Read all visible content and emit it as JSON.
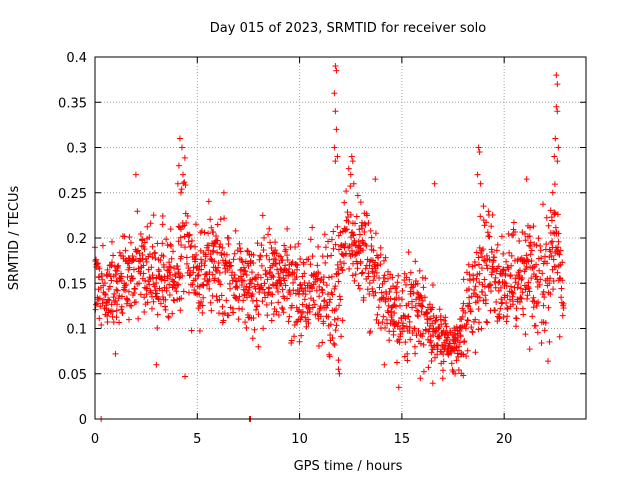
{
  "chart_data": {
    "type": "scatter",
    "title": "Day 015 of 2023, SRMTID for receiver solo",
    "xlabel": "GPS time / hours",
    "ylabel": "SRMTID / TECUs",
    "xlim": [
      0,
      24
    ],
    "ylim": [
      0,
      0.4
    ],
    "xticks": [
      0,
      5,
      10,
      15,
      20
    ],
    "xtick_labels": [
      "0",
      "5",
      "10",
      "15",
      "20"
    ],
    "yticks": [
      0,
      0.05,
      0.1,
      0.15,
      0.2,
      0.25,
      0.3,
      0.35,
      0.4
    ],
    "ytick_labels": [
      "0",
      "0.05",
      "0.1",
      "0.15",
      "0.2",
      "0.25",
      "0.3",
      "0.35",
      "0.4"
    ],
    "grid": true,
    "marker": "+",
    "color": "#ff0000",
    "x_step_hours": 0.02,
    "envelope_hours": [
      0,
      1,
      2,
      3,
      4,
      4.3,
      5,
      6,
      7,
      8,
      9,
      10,
      11,
      11.7,
      12.3,
      13,
      14,
      15,
      16,
      17,
      17.5,
      18,
      18.7,
      19.5,
      20,
      21,
      22,
      22.5,
      22.9
    ],
    "envelope_center": [
      0.15,
      0.14,
      0.17,
      0.15,
      0.16,
      0.22,
      0.16,
      0.17,
      0.15,
      0.15,
      0.16,
      0.14,
      0.15,
      0.14,
      0.21,
      0.19,
      0.14,
      0.12,
      0.11,
      0.085,
      0.08,
      0.1,
      0.16,
      0.16,
      0.15,
      0.16,
      0.15,
      0.2,
      0.13
    ],
    "envelope_spread": [
      0.03,
      0.035,
      0.04,
      0.04,
      0.04,
      0.06,
      0.04,
      0.045,
      0.035,
      0.04,
      0.04,
      0.04,
      0.05,
      0.06,
      0.05,
      0.045,
      0.045,
      0.04,
      0.04,
      0.02,
      0.02,
      0.035,
      0.05,
      0.045,
      0.045,
      0.045,
      0.05,
      0.07,
      0.025
    ],
    "outliers": [
      {
        "x": 0.3,
        "y": 0.0
      },
      {
        "x": 7.55,
        "y": 0.0
      },
      {
        "x": 7.6,
        "y": 0.0
      },
      {
        "x": 11.75,
        "y": 0.39
      },
      {
        "x": 11.8,
        "y": 0.385
      },
      {
        "x": 11.7,
        "y": 0.36
      },
      {
        "x": 11.75,
        "y": 0.34
      },
      {
        "x": 11.8,
        "y": 0.32
      },
      {
        "x": 11.7,
        "y": 0.3
      },
      {
        "x": 11.75,
        "y": 0.285
      },
      {
        "x": 11.85,
        "y": 0.29
      },
      {
        "x": 11.9,
        "y": 0.055
      },
      {
        "x": 11.95,
        "y": 0.05
      },
      {
        "x": 11.9,
        "y": 0.065
      },
      {
        "x": 4.15,
        "y": 0.31
      },
      {
        "x": 4.25,
        "y": 0.3
      },
      {
        "x": 4.1,
        "y": 0.28
      },
      {
        "x": 4.3,
        "y": 0.27
      },
      {
        "x": 4.05,
        "y": 0.26
      },
      {
        "x": 4.2,
        "y": 0.25
      },
      {
        "x": 4.4,
        "y": 0.047
      },
      {
        "x": 12.55,
        "y": 0.29
      },
      {
        "x": 12.6,
        "y": 0.285
      },
      {
        "x": 12.5,
        "y": 0.27
      },
      {
        "x": 12.65,
        "y": 0.26
      },
      {
        "x": 18.75,
        "y": 0.3
      },
      {
        "x": 18.8,
        "y": 0.295
      },
      {
        "x": 18.7,
        "y": 0.27
      },
      {
        "x": 18.85,
        "y": 0.26
      },
      {
        "x": 22.55,
        "y": 0.38
      },
      {
        "x": 22.6,
        "y": 0.37
      },
      {
        "x": 22.55,
        "y": 0.345
      },
      {
        "x": 22.6,
        "y": 0.34
      },
      {
        "x": 22.5,
        "y": 0.31
      },
      {
        "x": 22.65,
        "y": 0.3
      },
      {
        "x": 22.45,
        "y": 0.29
      },
      {
        "x": 22.6,
        "y": 0.285
      },
      {
        "x": 2.0,
        "y": 0.27
      },
      {
        "x": 21.1,
        "y": 0.265
      },
      {
        "x": 13.7,
        "y": 0.265
      },
      {
        "x": 16.6,
        "y": 0.26
      },
      {
        "x": 6.3,
        "y": 0.25
      },
      {
        "x": 8.2,
        "y": 0.225
      },
      {
        "x": 14.85,
        "y": 0.035
      },
      {
        "x": 15.9,
        "y": 0.045
      },
      {
        "x": 17.0,
        "y": 0.045
      },
      {
        "x": 17.6,
        "y": 0.05
      },
      {
        "x": 18.0,
        "y": 0.048
      },
      {
        "x": 3.0,
        "y": 0.06
      },
      {
        "x": 1.0,
        "y": 0.072
      }
    ]
  }
}
